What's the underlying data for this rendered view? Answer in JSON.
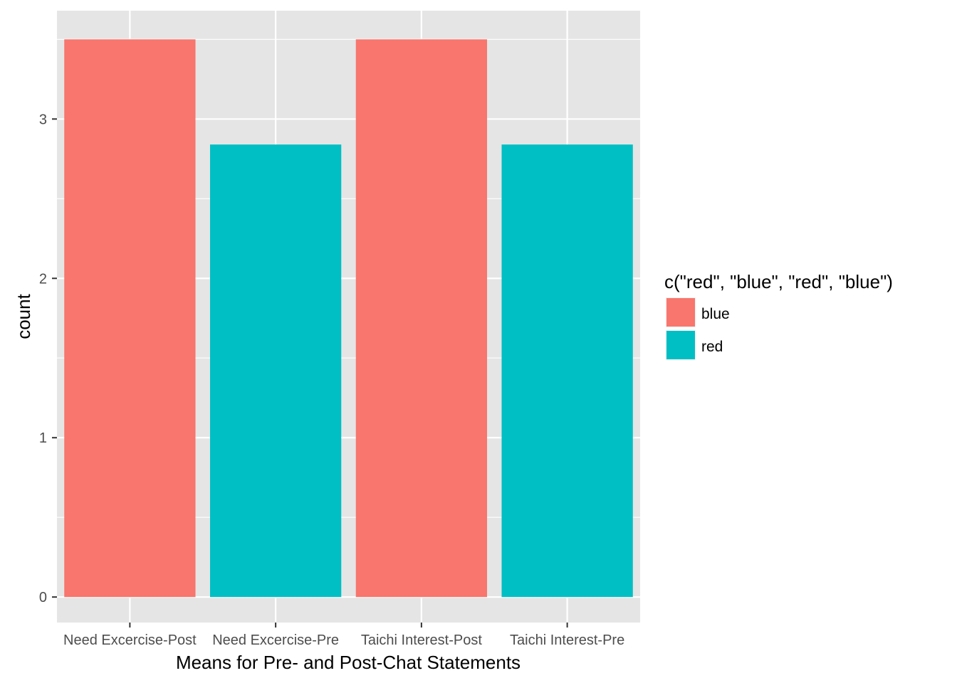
{
  "chart_data": {
    "type": "bar",
    "categories": [
      "Need Excercise-Post",
      "Need Excercise-Pre",
      "Taichi Interest-Post",
      "Taichi Interest-Pre"
    ],
    "values": [
      3.5,
      2.84,
      3.5,
      2.84
    ],
    "fill_groups": [
      "blue",
      "red",
      "blue",
      "red"
    ],
    "xlabel": "Means for Pre- and Post-Chat Statements",
    "ylabel": "count",
    "ylim": [
      -0.16,
      3.68
    ],
    "y_ticks": [
      0,
      1,
      2,
      3
    ],
    "y_minor_ticks": [
      0.5,
      1.5,
      2.5,
      3.5
    ],
    "grid": true,
    "legend": {
      "title": "c(\"red\", \"blue\", \"red\", \"blue\")",
      "position": "right",
      "items": [
        {
          "label": "blue",
          "color": "#F8766D"
        },
        {
          "label": "red",
          "color": "#00BFC4"
        }
      ]
    },
    "colors": {
      "panel_bg": "#E5E5E5",
      "grid": "#FFFFFF",
      "tick": "#333333"
    }
  }
}
